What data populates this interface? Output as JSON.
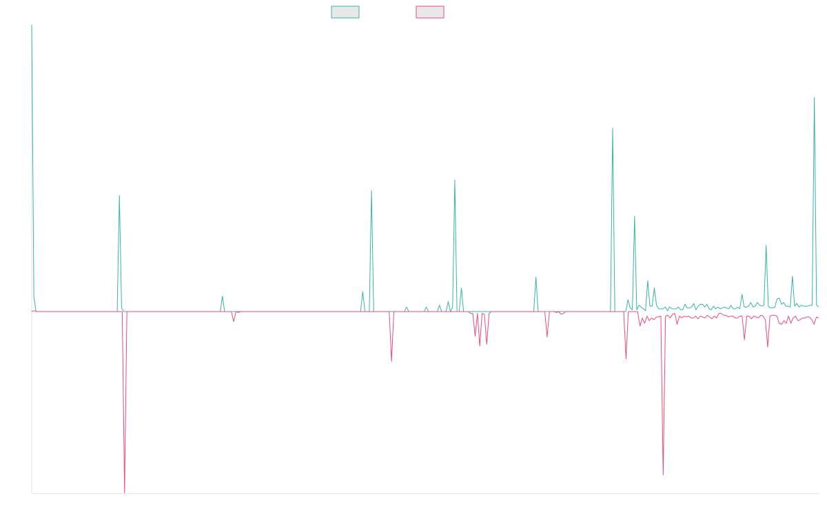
{
  "chart_data": {
    "type": "line",
    "title": "",
    "xlabel": "",
    "ylabel": "",
    "legend_position": "top-center",
    "grid": false,
    "ylim": [
      -100,
      158
    ],
    "series": [
      {
        "color": "#36b3a8",
        "legend_fill": "#e8e8e8",
        "values": [
          158,
          8,
          0,
          0,
          0,
          0,
          0,
          0,
          0,
          0,
          0,
          0,
          0,
          0,
          0,
          0,
          0,
          0,
          0,
          0,
          0,
          0,
          0,
          0,
          0,
          0,
          0,
          0,
          0,
          0,
          0,
          0,
          0,
          0,
          0,
          0,
          0,
          0,
          0,
          0,
          64,
          2,
          0,
          0,
          0,
          0,
          0,
          0,
          0,
          0,
          0,
          0,
          0,
          0,
          0,
          0,
          0,
          0,
          0,
          0,
          0,
          0,
          0,
          0,
          0,
          0,
          0,
          0,
          0,
          0,
          0,
          0,
          0,
          0,
          0,
          0,
          0,
          0,
          0,
          0,
          0,
          0,
          0,
          0,
          0,
          0,
          0,
          8.5,
          0,
          0,
          0,
          0,
          0,
          0,
          0,
          0,
          0,
          0,
          0,
          0,
          0,
          0,
          0,
          0,
          0,
          0,
          0,
          0,
          0,
          0,
          0,
          0,
          0,
          0,
          0,
          0,
          0,
          0,
          0,
          0,
          0,
          0,
          0,
          0,
          0,
          0,
          0,
          0,
          0,
          0,
          0,
          0,
          0,
          0,
          0,
          0,
          0,
          0,
          0,
          0,
          0,
          0,
          0,
          0,
          0,
          0,
          0,
          0,
          0,
          0,
          0,
          11,
          0,
          0,
          0,
          66.5,
          0,
          0,
          0,
          0,
          0,
          0,
          0,
          0,
          0,
          0,
          0,
          0,
          0,
          0,
          0,
          2.5,
          0,
          0,
          0,
          0,
          0,
          0,
          0,
          0,
          2.5,
          0,
          0,
          0,
          0,
          0,
          3.5,
          0,
          0,
          0,
          5.5,
          0,
          2.5,
          72.5,
          0,
          0,
          13,
          0,
          0,
          0,
          0,
          0,
          0,
          0,
          0,
          0,
          0,
          0,
          0,
          0,
          0,
          0,
          0,
          0,
          0,
          0,
          0,
          0,
          0,
          0,
          0,
          0,
          0,
          0,
          0,
          0,
          0,
          0,
          0,
          0,
          19,
          0,
          0,
          0,
          0,
          0,
          0,
          0,
          0,
          0,
          0,
          0,
          0,
          0,
          0,
          0,
          0,
          0,
          0,
          0,
          0,
          0,
          0,
          0,
          0,
          0,
          0,
          0,
          0,
          0,
          0,
          0,
          0,
          0,
          0,
          101,
          0,
          0,
          0,
          0,
          0,
          0,
          6.5,
          2,
          1,
          52.5,
          1,
          3.5,
          2.5,
          1.5,
          0.5,
          17,
          3,
          3,
          13,
          3.5,
          1.5,
          1.5,
          1.5,
          2.5,
          0.5,
          2.5,
          1.5,
          1.5,
          1.5,
          2.5,
          1,
          1,
          4,
          2,
          2,
          2.5,
          4.5,
          1,
          3,
          4,
          4,
          2.5,
          4,
          1.5,
          1,
          3,
          1.5,
          2.5,
          1.5,
          2,
          2.5,
          2,
          1.5,
          3.5,
          1.5,
          1.5,
          2.5,
          1.5,
          9.5,
          2.5,
          2.5,
          3,
          5,
          2.5,
          3,
          5,
          3.5,
          3,
          3.5,
          36.5,
          3,
          2,
          2,
          2.5,
          7,
          7.5,
          4,
          5,
          3,
          3,
          2.5,
          19.5,
          3,
          4.5,
          2.5,
          3.5,
          3,
          3,
          3,
          3.5,
          3.5,
          118,
          3.5,
          2.5
        ]
      },
      {
        "color": "#ef4a77",
        "legend_fill": "#e8e8e8",
        "values": [
          0,
          0.5,
          0,
          0,
          0,
          0,
          0,
          0,
          0,
          0,
          0,
          0,
          0,
          0,
          0,
          0,
          0,
          0,
          0,
          0,
          0,
          0,
          0,
          0,
          0,
          0,
          0,
          0,
          0,
          0,
          0,
          0,
          0,
          0,
          0,
          0,
          0,
          0,
          0,
          0,
          -100,
          0,
          0,
          0,
          0,
          0,
          0,
          0,
          0,
          0,
          0,
          0,
          0,
          0,
          0,
          0,
          0,
          0,
          0,
          0,
          0,
          0,
          0,
          0,
          0,
          0,
          0,
          0,
          0,
          0,
          0,
          0,
          0,
          0,
          0,
          0,
          0,
          0,
          0,
          0,
          0,
          0,
          0,
          0,
          0,
          0,
          0,
          -5.5,
          0,
          -0.5,
          0,
          0,
          0,
          0,
          0,
          0,
          0,
          0,
          0,
          0,
          0,
          0,
          0,
          0,
          0,
          0,
          0,
          0,
          0,
          0,
          0,
          0,
          0,
          0,
          0,
          0,
          0,
          0,
          0,
          0,
          0,
          0,
          0,
          0,
          0,
          0,
          0,
          0,
          0,
          0,
          0,
          0,
          0,
          0,
          0,
          0,
          0,
          0,
          0,
          0,
          0,
          0,
          0,
          0,
          0,
          0,
          0,
          0,
          0,
          0,
          0,
          0,
          0,
          0,
          0,
          -27.5,
          0,
          0,
          0,
          0,
          0,
          0,
          0,
          0,
          0,
          0,
          0,
          0,
          0,
          0,
          0,
          0,
          0,
          0,
          0,
          0,
          0,
          0,
          0,
          0,
          0,
          0,
          0,
          0,
          0,
          0,
          0,
          0,
          0,
          -1,
          -1,
          -13.5,
          -1,
          -19,
          -1,
          -1.5,
          -18,
          -1,
          0,
          0,
          0,
          0,
          0,
          0,
          0,
          0,
          0,
          0,
          0,
          0,
          0,
          0,
          0,
          0,
          0,
          0,
          0,
          0,
          0,
          0,
          0,
          0,
          -14,
          0,
          0,
          0,
          -0.5,
          0,
          -1.5,
          -1,
          0,
          0,
          0,
          0,
          0,
          0,
          0,
          0,
          0,
          0,
          0,
          0,
          0,
          0,
          0,
          0,
          0,
          0,
          0,
          0,
          0,
          0,
          0,
          0,
          0,
          0,
          -26,
          0,
          0,
          0,
          0,
          0,
          -8,
          -3.5,
          -6.5,
          -2.5,
          -5,
          -3.5,
          -4.5,
          -3,
          -3,
          -2.5,
          -90,
          -2.5,
          -2,
          -3.5,
          -1.5,
          -1,
          -7,
          -2.5,
          -3.5,
          -2.5,
          -3,
          -2.5,
          -3.5,
          -3.5,
          -2.5,
          -4,
          -2.5,
          -3,
          -3.5,
          -2,
          -3,
          -4,
          -2.5,
          -3.5,
          -1,
          -1,
          -2,
          -2,
          -3,
          -2.5,
          -2.5,
          -3.5,
          -3.5,
          -2.5,
          -2.5,
          -15.5,
          -2.5,
          -2.5,
          -4,
          -2.5,
          -3,
          -3.5,
          -2,
          -2.5,
          -4.5,
          -19.5,
          -2.5,
          -2,
          -2,
          -2.5,
          -6.5,
          -7,
          -5,
          -6.5,
          -2.5,
          -6.5,
          -3.5,
          -2.5,
          -5,
          -4.5,
          -3.5,
          -3.5,
          -3,
          -3,
          -4.5,
          -7,
          -3,
          -3.5
        ]
      }
    ]
  }
}
